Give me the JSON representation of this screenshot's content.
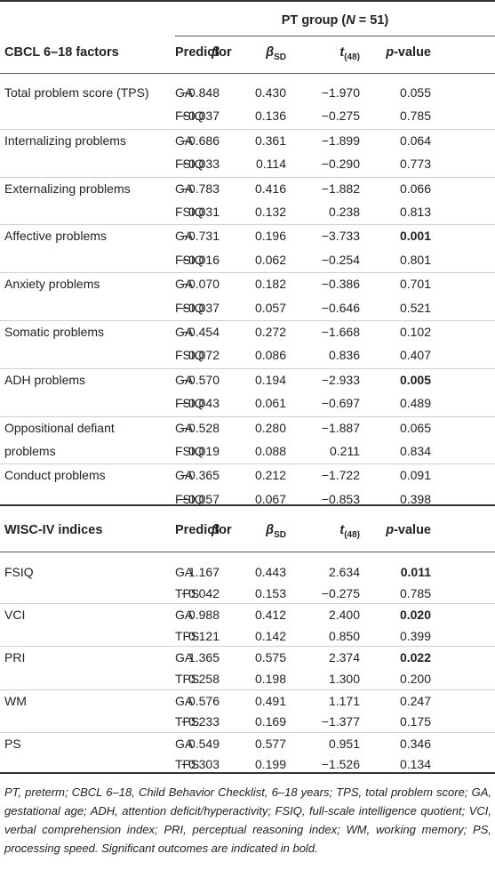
{
  "group_header": {
    "prefix": "PT group (",
    "n_label": "N",
    "suffix": " = 51)"
  },
  "cbcl_header": {
    "factor_col": "CBCL 6–18 factors",
    "predictor_col": "Predictor",
    "beta": "β",
    "beta_sd": "β",
    "beta_sd_sub": "SD",
    "t": "t",
    "t_sub": "(48)",
    "p": "p",
    "p_suffix": "-value"
  },
  "cbcl_rows": [
    {
      "factor": "Total problem score (TPS)",
      "rows": [
        {
          "predictor": "GA",
          "beta": "−0.848",
          "beta_sd": "0.430",
          "t": "−1.970",
          "p": "0.055",
          "sig": false
        },
        {
          "predictor": "FSIQ",
          "beta": "−0.037",
          "beta_sd": "0.136",
          "t": "−0.275",
          "p": "0.785",
          "sig": false
        }
      ]
    },
    {
      "factor": "Internalizing problems",
      "rows": [
        {
          "predictor": "GA",
          "beta": "−0.686",
          "beta_sd": "0.361",
          "t": "−1.899",
          "p": "0.064",
          "sig": false
        },
        {
          "predictor": "FSIQ",
          "beta": "−0.033",
          "beta_sd": "0.114",
          "t": "−0.290",
          "p": "0.773",
          "sig": false
        }
      ]
    },
    {
      "factor": "Externalizing problems",
      "rows": [
        {
          "predictor": "GA",
          "beta": "−0.783",
          "beta_sd": "0.416",
          "t": "−1.882",
          "p": "0.066",
          "sig": false
        },
        {
          "predictor": "FSIQ",
          "beta": "0.031",
          "beta_sd": "0.132",
          "t": "0.238",
          "p": "0.813",
          "sig": false
        }
      ]
    },
    {
      "factor": "Affective problems",
      "rows": [
        {
          "predictor": "GA",
          "beta": "−0.731",
          "beta_sd": "0.196",
          "t": "−3.733",
          "p": "0.001",
          "sig": true
        },
        {
          "predictor": "FSIQ",
          "beta": "−0.016",
          "beta_sd": "0.062",
          "t": "−0.254",
          "p": "0.801",
          "sig": false
        }
      ]
    },
    {
      "factor": "Anxiety problems",
      "rows": [
        {
          "predictor": "GA",
          "beta": "−0.070",
          "beta_sd": "0.182",
          "t": "−0.386",
          "p": "0.701",
          "sig": false
        },
        {
          "predictor": "FSIQ",
          "beta": "−0.037",
          "beta_sd": "0.057",
          "t": "−0.646",
          "p": "0.521",
          "sig": false
        }
      ]
    },
    {
      "factor": "Somatic problems",
      "rows": [
        {
          "predictor": "GA",
          "beta": "−0.454",
          "beta_sd": "0.272",
          "t": "−1.668",
          "p": "0.102",
          "sig": false
        },
        {
          "predictor": "FSIQ",
          "beta": "0.072",
          "beta_sd": "0.086",
          "t": "0.836",
          "p": "0.407",
          "sig": false
        }
      ]
    },
    {
      "factor": "ADH problems",
      "rows": [
        {
          "predictor": "GA",
          "beta": "−0.570",
          "beta_sd": "0.194",
          "t": "−2.933",
          "p": "0.005",
          "sig": true
        },
        {
          "predictor": "FSIQ",
          "beta": "−0.043",
          "beta_sd": "0.061",
          "t": "−0.697",
          "p": "0.489",
          "sig": false
        }
      ]
    },
    {
      "factor": "Oppositional defiant problems",
      "factor_line1": "Oppositional defiant",
      "factor_line2": "problems",
      "rows": [
        {
          "predictor": "GA",
          "beta": "−0.528",
          "beta_sd": "0.280",
          "t": "−1.887",
          "p": "0.065",
          "sig": false
        },
        {
          "predictor": "FSIQ",
          "beta": "0.019",
          "beta_sd": "0.088",
          "t": "0.211",
          "p": "0.834",
          "sig": false
        }
      ]
    },
    {
      "factor": "Conduct problems",
      "rows": [
        {
          "predictor": "GA",
          "beta": "−0.365",
          "beta_sd": "0.212",
          "t": "−1.722",
          "p": "0.091",
          "sig": false
        },
        {
          "predictor": "FSIQ",
          "beta": "−0.057",
          "beta_sd": "0.067",
          "t": "−0.853",
          "p": "0.398",
          "sig": false
        }
      ]
    }
  ],
  "wisc_header": {
    "factor_col": "WISC-IV indices",
    "predictor_col": "Predictor",
    "beta": "β",
    "beta_sd": "β",
    "beta_sd_sub": "SD",
    "t": "t",
    "t_sub": "(48)",
    "p": "p",
    "p_suffix": "-value"
  },
  "wisc_rows": [
    {
      "factor": "FSIQ",
      "rows": [
        {
          "predictor": "GA",
          "beta": "1.167",
          "beta_sd": "0.443",
          "t": "2.634",
          "p": "0.011",
          "sig": true
        },
        {
          "predictor": "TPS",
          "beta": "−0.042",
          "beta_sd": "0.153",
          "t": "−0.275",
          "p": "0.785",
          "sig": false
        }
      ]
    },
    {
      "factor": "VCI",
      "rows": [
        {
          "predictor": "GA",
          "beta": "0.988",
          "beta_sd": "0.412",
          "t": "2.400",
          "p": "0.020",
          "sig": true
        },
        {
          "predictor": "TPS",
          "beta": "0.121",
          "beta_sd": "0.142",
          "t": "0.850",
          "p": "0.399",
          "sig": false
        }
      ]
    },
    {
      "factor": "PRI",
      "rows": [
        {
          "predictor": "GA",
          "beta": "1.365",
          "beta_sd": "0.575",
          "t": "2.374",
          "p": "0.022",
          "sig": true
        },
        {
          "predictor": "TPS",
          "beta": "0.258",
          "beta_sd": "0.198",
          "t": "1.300",
          "p": "0.200",
          "sig": false
        }
      ]
    },
    {
      "factor": "WM",
      "rows": [
        {
          "predictor": "GA",
          "beta": "0.576",
          "beta_sd": "0.491",
          "t": "1.171",
          "p": "0.247",
          "sig": false
        },
        {
          "predictor": "TPS",
          "beta": "−0.233",
          "beta_sd": "0.169",
          "t": "−1.377",
          "p": "0.175",
          "sig": false
        }
      ]
    },
    {
      "factor": "PS",
      "rows": [
        {
          "predictor": "GA",
          "beta": "0.549",
          "beta_sd": "0.577",
          "t": "0.951",
          "p": "0.346",
          "sig": false
        },
        {
          "predictor": "TPS",
          "beta": "−0.303",
          "beta_sd": "0.199",
          "t": "−1.526",
          "p": "0.134",
          "sig": false
        }
      ]
    }
  ],
  "footnote": "PT, preterm; CBCL 6–18, Child Behavior Checklist, 6–18 years; TPS, total problem score; GA, gestational age; ADH, attention deficit/hyperactivity; FSIQ, full-scale intelligence quotient; VCI, verbal comprehension index; PRI, perceptual reasoning index; WM, working memory; PS, processing speed. Significant outcomes are indicated in bold."
}
